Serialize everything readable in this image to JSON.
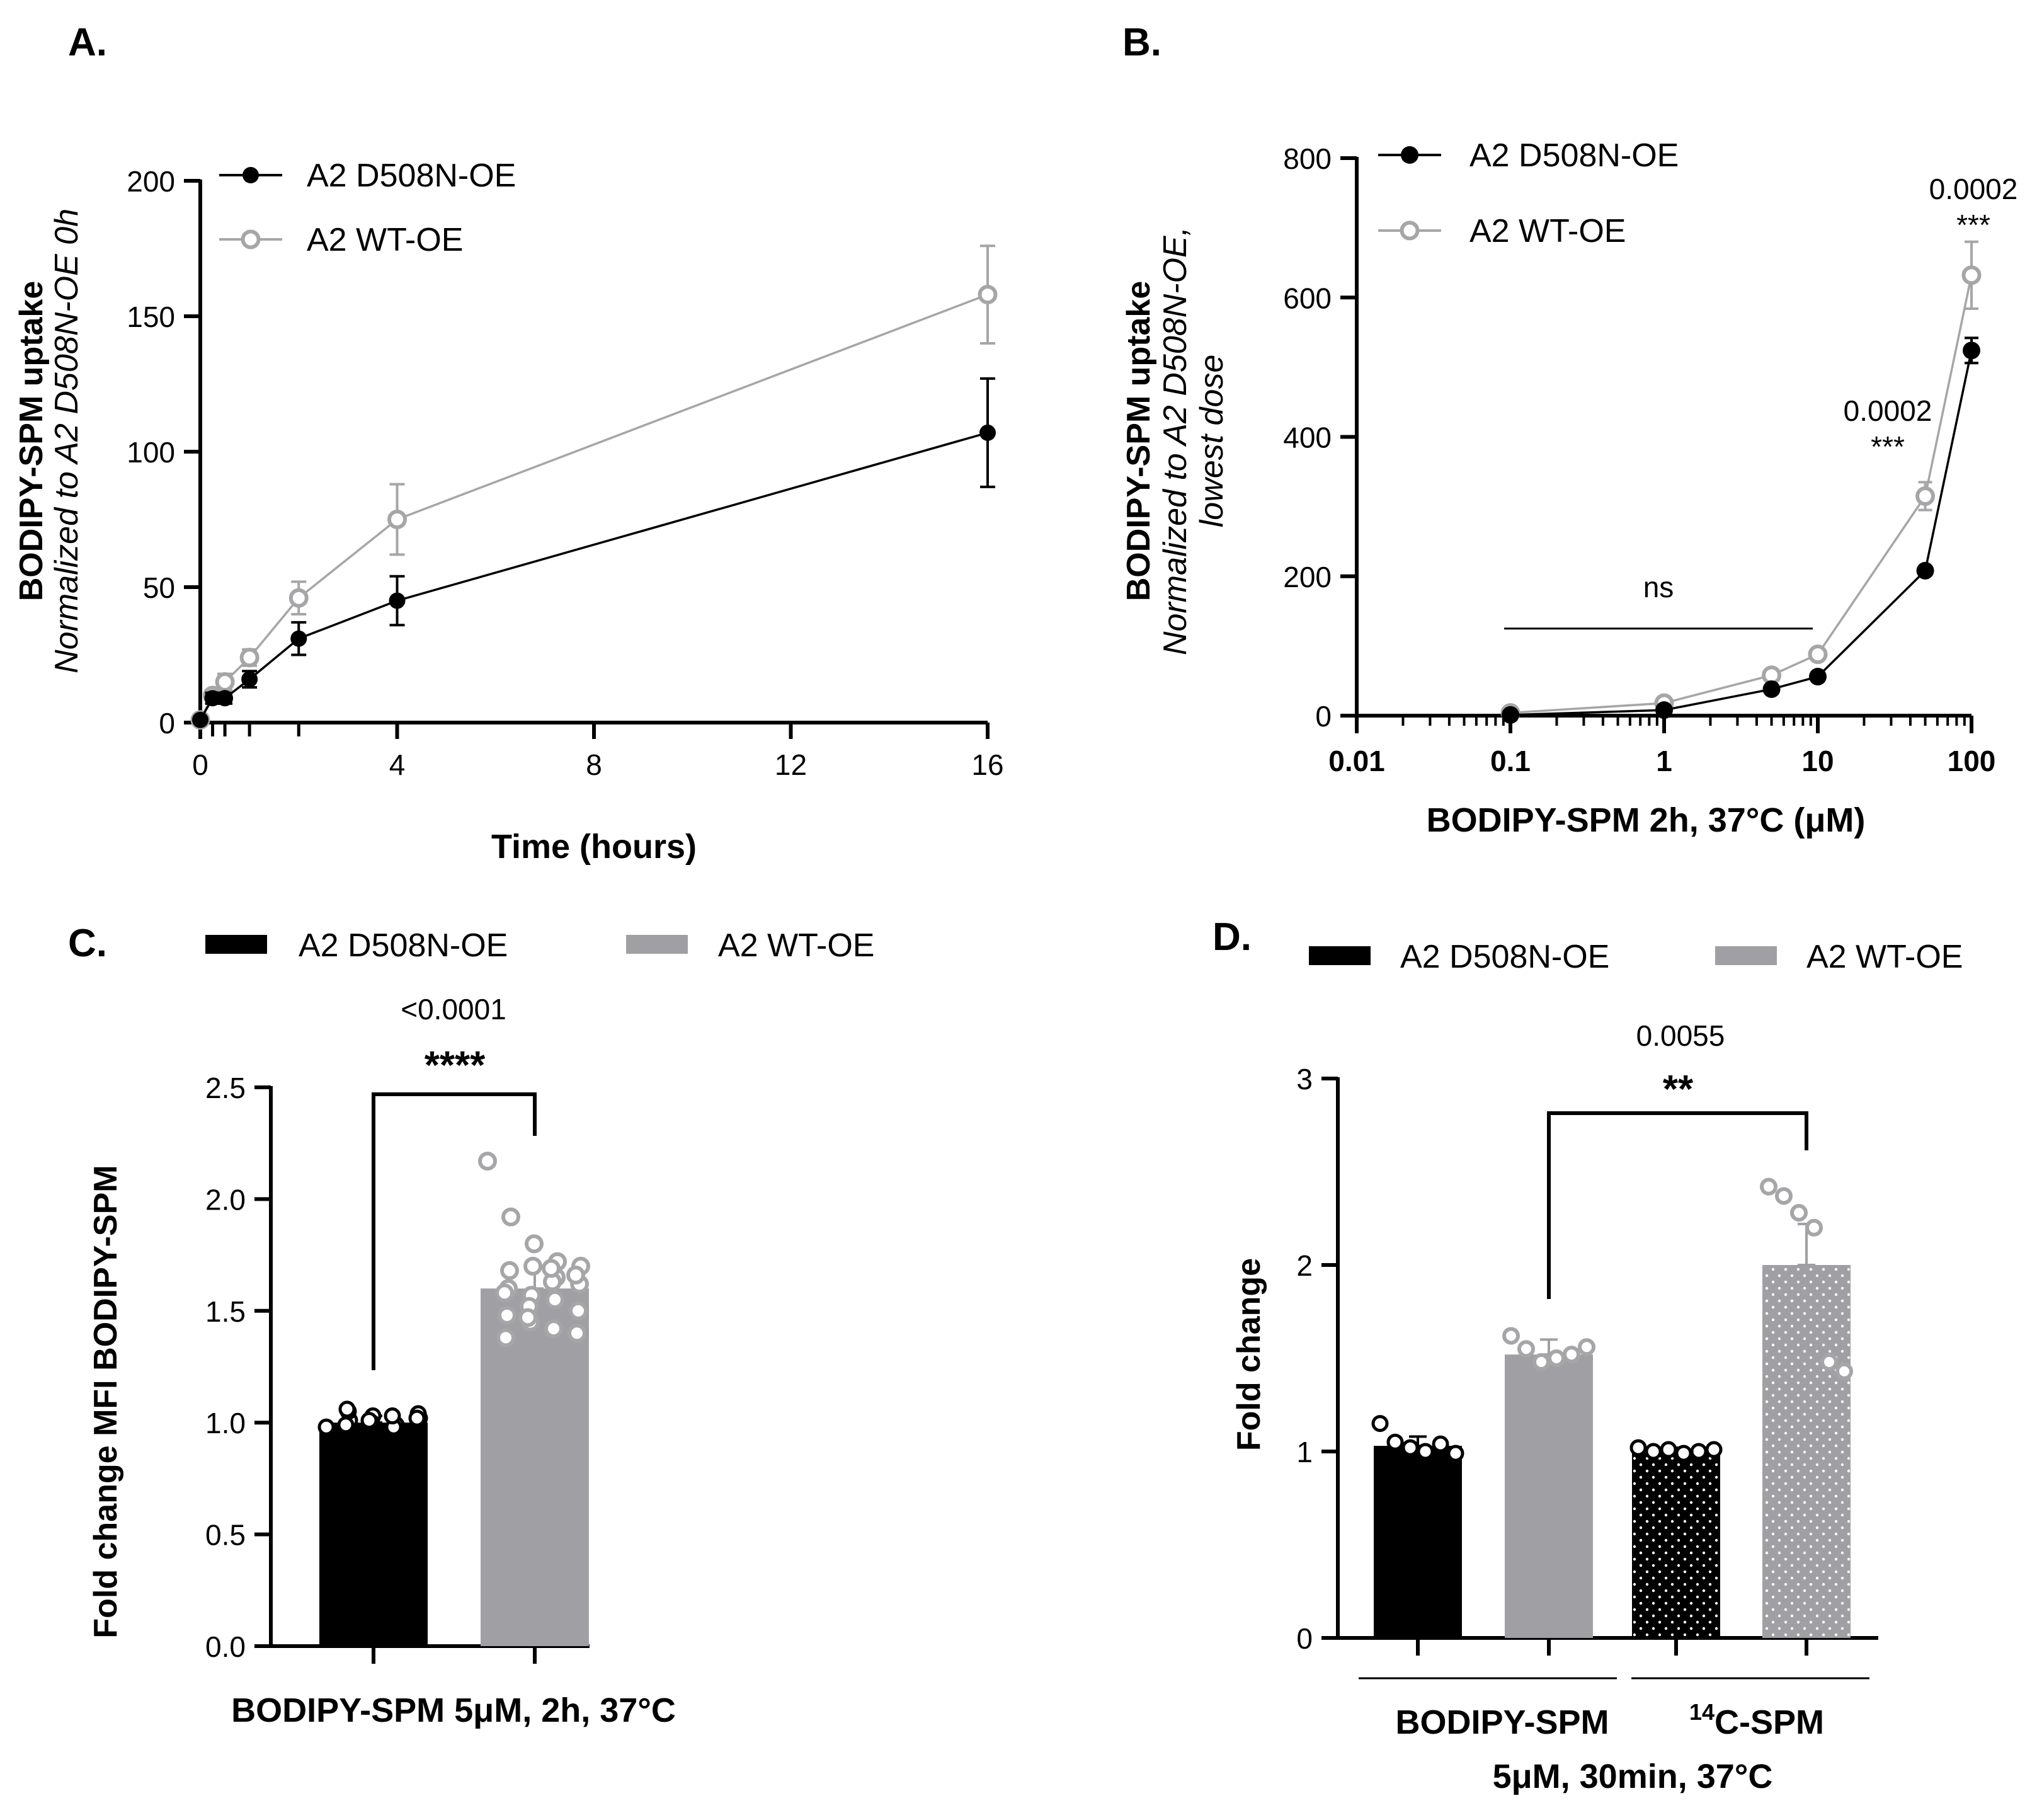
{
  "colors": {
    "series1": "#000000",
    "series2": "#a6a6a8",
    "series2_bar": "#a0a0a4"
  },
  "panels": {
    "A": {
      "letter": "A.",
      "ylabel": "BODIPY-SPM uptake",
      "ylabel_sub": "Normalized to A2 D508N-OE 0h",
      "xlabel": "Time (hours)"
    },
    "B": {
      "letter": "B.",
      "ylabel": "BODIPY-SPM uptake",
      "ylabel_sub1": "Normalized to A2 D508N-OE,",
      "ylabel_sub2": "lowest dose",
      "xlabel": "BODIPY-SPM 2h, 37°C (μM)"
    },
    "C": {
      "letter": "C.",
      "ylabel": "Fold change MFI BODIPY-SPM",
      "xlabel": "BODIPY-SPM 5μM, 2h, 37°C"
    },
    "D": {
      "letter": "D.",
      "ylabel": "Fold change",
      "group1": "BODIPY-SPM",
      "group2_sup": "14",
      "group2": "C-SPM",
      "xlabel": "5μM, 30min, 37°C"
    }
  },
  "chart_data": [
    {
      "panel": "A",
      "type": "line",
      "title": "",
      "xlabel": "Time (hours)",
      "ylabel": "BODIPY-SPM uptake",
      "ylabel_sub": "Normalized to A2 D508N-OE 0h",
      "xlim": [
        0,
        16
      ],
      "ylim": [
        0,
        200
      ],
      "xticks": [
        "0",
        "4",
        "8",
        "12",
        "16"
      ],
      "yticks": [
        "0",
        "50",
        "100",
        "150",
        "200"
      ],
      "legend": "top-left",
      "series": [
        {
          "name": "A2 D508N-OE",
          "marker": "filled",
          "x": [
            0,
            0.25,
            0.5,
            1,
            2,
            4,
            16
          ],
          "y": [
            1,
            9,
            9,
            16,
            31,
            45,
            107
          ],
          "err": [
            1,
            2,
            2,
            3,
            6,
            9,
            20
          ]
        },
        {
          "name": "A2 WT-OE",
          "marker": "open",
          "x": [
            0,
            0.25,
            0.5,
            1,
            2,
            4,
            16
          ],
          "y": [
            1,
            10,
            15,
            24,
            46,
            75,
            158
          ],
          "err": [
            1,
            2,
            3,
            3,
            6,
            13,
            18
          ]
        }
      ]
    },
    {
      "panel": "B",
      "type": "line",
      "xscale": "log",
      "xlabel": "BODIPY-SPM 2h, 37°C (μM)",
      "ylabel": "BODIPY-SPM uptake",
      "ylabel_sub": "Normalized to A2 D508N-OE, lowest dose",
      "xlim": [
        0.01,
        100
      ],
      "ylim": [
        0,
        800
      ],
      "xticks": [
        "0.01",
        "0.1",
        "1",
        "10",
        "100"
      ],
      "yticks": [
        "0",
        "200",
        "400",
        "600",
        "800"
      ],
      "legend": "top-left",
      "series": [
        {
          "name": "A2 D508N-OE",
          "marker": "filled",
          "x": [
            0.1,
            1,
            5,
            10,
            50,
            100
          ],
          "y": [
            1,
            8,
            38,
            56,
            208,
            524
          ],
          "err": [
            0,
            0,
            0,
            0,
            0,
            18
          ]
        },
        {
          "name": "A2 WT-OE",
          "marker": "open",
          "x": [
            0.1,
            1,
            5,
            10,
            50,
            100
          ],
          "y": [
            4,
            18,
            58,
            88,
            315,
            632
          ],
          "err": [
            0,
            0,
            0,
            0,
            20,
            48
          ]
        }
      ],
      "annotations": [
        {
          "label": "ns",
          "x_from": 0.1,
          "x_to": 10,
          "y": 125
        },
        {
          "pvalue": "0.0002",
          "stars": "***",
          "x": 50
        },
        {
          "pvalue": "0.0002",
          "stars": "***",
          "x": 100
        }
      ]
    },
    {
      "panel": "C",
      "type": "bar",
      "xlabel": "BODIPY-SPM 5μM, 2h, 37°C",
      "ylabel": "Fold change MFI BODIPY-SPM",
      "ylim": [
        0,
        2.5
      ],
      "yticks": [
        "0.0",
        "0.5",
        "1.0",
        "1.5",
        "2.0",
        "2.5"
      ],
      "legend": "top",
      "series": [
        {
          "name": "A2 D508N-OE",
          "value": 1.0,
          "err": 0.03,
          "points": [
            0.98,
            1.01,
            1.03,
            0.99,
            1.02,
            1.05,
            1.0,
            0.97,
            1.04,
            1.06,
            1.0,
            0.98,
            1.02,
            0.99,
            1.01,
            1.03
          ]
        },
        {
          "name": "A2 WT-OE",
          "value": 1.6,
          "err": 0.1,
          "points": [
            2.17,
            1.92,
            1.8,
            1.72,
            1.7,
            1.68,
            1.7,
            1.65,
            1.62,
            1.6,
            1.57,
            1.55,
            1.5,
            1.48,
            1.45,
            1.42,
            1.4,
            1.38,
            1.52,
            1.63,
            1.66,
            1.58,
            1.47,
            1.69
          ]
        }
      ],
      "comparison": {
        "pvalue": "<0.0001",
        "stars": "****"
      }
    },
    {
      "panel": "D",
      "type": "bar",
      "xlabel": "5μM, 30min, 37°C",
      "ylabel": "Fold change",
      "ylim": [
        0,
        3
      ],
      "yticks": [
        "0",
        "1",
        "2",
        "3"
      ],
      "groups": [
        "BODIPY-SPM",
        "14C-SPM"
      ],
      "legend": "top",
      "series": [
        {
          "name": "A2 D508N-OE",
          "values": [
            1.03,
            1.0
          ],
          "err": [
            0.05,
            0.02
          ],
          "points": [
            [
              1.15,
              1.05,
              1.02,
              1.0,
              1.04,
              0.99
            ],
            [
              1.02,
              1.0,
              1.01,
              0.99,
              1.0,
              1.01
            ]
          ]
        },
        {
          "name": "A2 WT-OE",
          "values": [
            1.52,
            2.0
          ],
          "err": [
            0.08,
            0.22
          ],
          "points": [
            [
              1.62,
              1.55,
              1.48,
              1.5,
              1.52,
              1.56
            ],
            [
              2.42,
              2.37,
              2.28,
              2.2,
              1.48,
              1.43
            ]
          ]
        }
      ],
      "comparison": {
        "pvalue": "0.0055",
        "stars": "**"
      }
    }
  ]
}
